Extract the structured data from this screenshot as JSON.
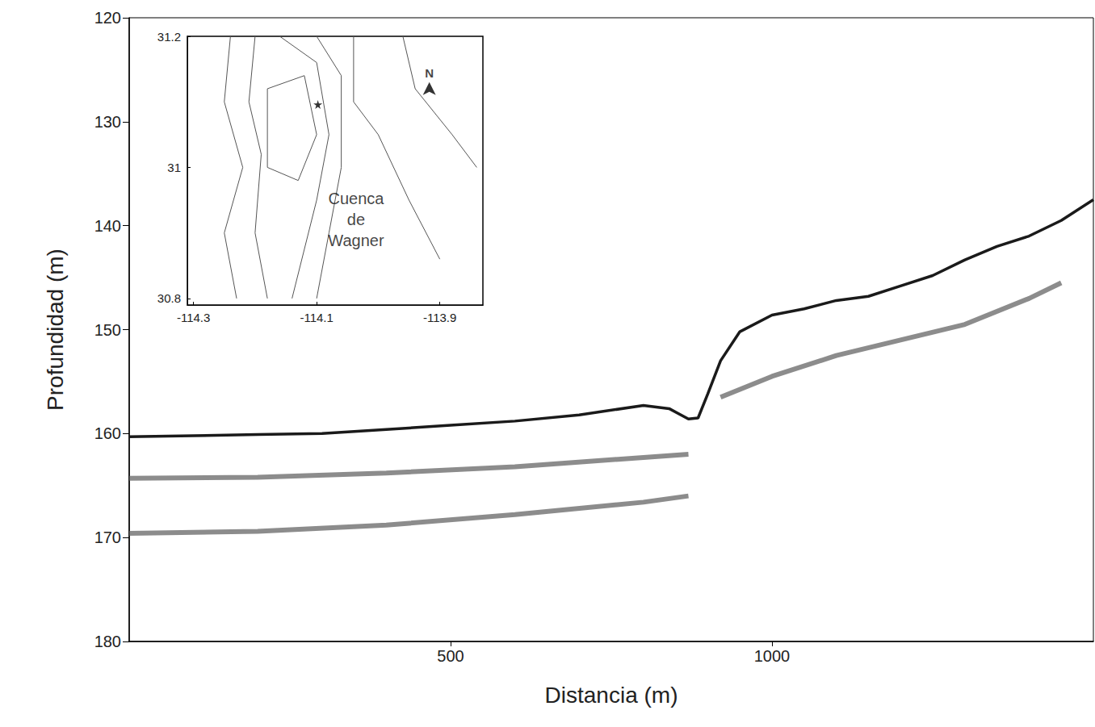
{
  "chart_data": [
    {
      "type": "line",
      "x_label": "Distancia (m)",
      "y_label": "Profundidad (m)",
      "xlim": [
        0,
        1500
      ],
      "xticks": [
        500,
        1000
      ],
      "ylim": [
        120,
        180
      ],
      "yticks": [
        120,
        130,
        140,
        150,
        160,
        170,
        180
      ],
      "grid": false,
      "series": [
        {
          "color": "#1a1a1a",
          "x": [
            0,
            100,
            200,
            300,
            400,
            500,
            600,
            700,
            800,
            840,
            870,
            885,
            900,
            920,
            950,
            1000,
            1050,
            1100,
            1150,
            1200,
            1250,
            1300,
            1350,
            1400,
            1450,
            1500
          ],
          "values": [
            160.3,
            160.2,
            160.1,
            160,
            159.6,
            159.2,
            158.8,
            158.2,
            157.3,
            157.6,
            158.6,
            158.5,
            156.2,
            153,
            150.2,
            148.6,
            148,
            147.2,
            146.8,
            145.8,
            144.8,
            143.3,
            142,
            141,
            139.5,
            137.5
          ]
        },
        {
          "color": "#666666",
          "x": [
            0,
            200,
            400,
            600,
            800,
            870
          ],
          "values": [
            164.3,
            164.2,
            163.8,
            163.2,
            162.3,
            162
          ]
        },
        {
          "color": "#666666",
          "x": [
            0,
            200,
            400,
            600,
            800,
            870
          ],
          "values": [
            169.6,
            169.4,
            168.8,
            167.8,
            166.6,
            166
          ]
        },
        {
          "color": "#666666",
          "x": [
            920,
            1000,
            1100,
            1200,
            1300,
            1400,
            1450
          ],
          "values": [
            156.5,
            154.5,
            152.5,
            151,
            149.5,
            147,
            145.5
          ]
        }
      ]
    },
    {
      "type": "contour",
      "xlim": [
        -114.31,
        -113.83
      ],
      "xticks": [
        -114.3,
        -114.1,
        -113.9
      ],
      "ylim": [
        30.79,
        31.2
      ],
      "yticks": [
        30.8,
        31,
        31.2
      ],
      "color": "#555555",
      "contours": [
        [
          [
            -114.24,
            31.2
          ],
          [
            -114.25,
            31.1
          ],
          [
            -114.22,
            31.0
          ],
          [
            -114.25,
            30.9
          ],
          [
            -114.23,
            30.8
          ]
        ],
        [
          [
            -114.2,
            31.2
          ],
          [
            -114.21,
            31.1
          ],
          [
            -114.19,
            31.02
          ],
          [
            -114.2,
            30.9
          ],
          [
            -114.18,
            30.8
          ]
        ],
        [
          [
            -114.18,
            31.12
          ],
          [
            -114.12,
            31.14
          ],
          [
            -114.1,
            31.05
          ],
          [
            -114.13,
            30.98
          ],
          [
            -114.18,
            31.0
          ],
          [
            -114.18,
            31.12
          ]
        ],
        [
          [
            -114.16,
            31.2
          ],
          [
            -114.1,
            31.16
          ],
          [
            -114.08,
            31.05
          ],
          [
            -114.1,
            30.95
          ],
          [
            -114.14,
            30.8
          ]
        ],
        [
          [
            -114.1,
            31.2
          ],
          [
            -114.06,
            31.14
          ],
          [
            -114.06,
            31.0
          ],
          [
            -114.08,
            30.9
          ],
          [
            -114.1,
            30.8
          ]
        ],
        [
          [
            -114.04,
            31.2
          ],
          [
            -114.04,
            31.1
          ],
          [
            -114.0,
            31.05
          ],
          [
            -113.95,
            30.95
          ],
          [
            -113.9,
            30.86
          ]
        ],
        [
          [
            -113.96,
            31.2
          ],
          [
            -113.94,
            31.12
          ],
          [
            -113.88,
            31.05
          ],
          [
            -113.84,
            31.0
          ]
        ]
      ],
      "annotations": [
        {
          "text": "Cuenca de Wagner",
          "x": -114.036,
          "y": 30.92
        },
        {
          "text": "N",
          "x": -113.917,
          "y": 31.13,
          "marker": "arrow"
        }
      ],
      "points": [
        {
          "x": -114.098,
          "y": 31.096,
          "marker": "star"
        }
      ]
    }
  ]
}
